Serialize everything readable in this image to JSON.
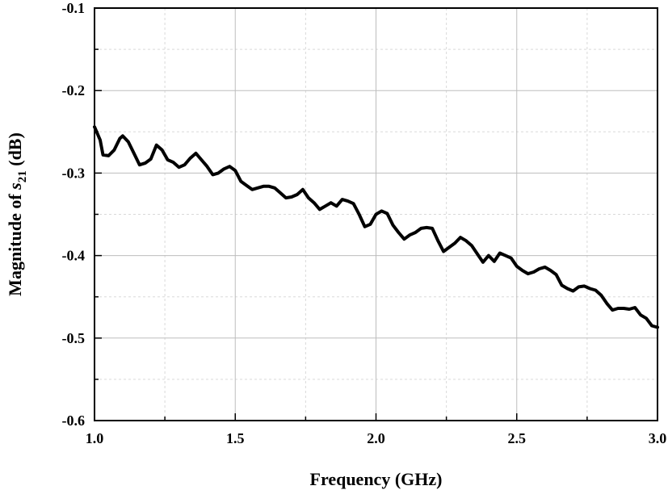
{
  "chart_data": {
    "type": "line",
    "title": "",
    "xlabel": "Frequency (GHz)",
    "ylabel_prefix": "Magnitude of ",
    "ylabel_var": "s",
    "ylabel_sub": "21",
    "ylabel_suffix": " (dB)",
    "xlim": [
      1.0,
      3.0
    ],
    "ylim": [
      -0.6,
      -0.1
    ],
    "xticks": [
      1.0,
      1.5,
      2.0,
      2.5,
      3.0
    ],
    "xtick_labels": [
      "1.0",
      "1.5",
      "2.0",
      "2.5",
      "3.0"
    ],
    "yticks": [
      -0.6,
      -0.5,
      -0.4,
      -0.3,
      -0.2,
      -0.1
    ],
    "ytick_labels": [
      "-0.6",
      "-0.5",
      "-0.4",
      "-0.3",
      "-0.2",
      "-0.1"
    ],
    "grid": true,
    "series": [
      {
        "color": "#000000",
        "x": [
          1.0,
          1.02,
          1.03,
          1.05,
          1.07,
          1.09,
          1.1,
          1.12,
          1.14,
          1.16,
          1.18,
          1.2,
          1.22,
          1.24,
          1.26,
          1.28,
          1.3,
          1.32,
          1.34,
          1.36,
          1.38,
          1.4,
          1.42,
          1.44,
          1.46,
          1.48,
          1.5,
          1.52,
          1.54,
          1.56,
          1.58,
          1.6,
          1.62,
          1.64,
          1.66,
          1.68,
          1.7,
          1.72,
          1.74,
          1.76,
          1.78,
          1.8,
          1.82,
          1.84,
          1.86,
          1.88,
          1.9,
          1.92,
          1.94,
          1.96,
          1.98,
          2.0,
          2.02,
          2.04,
          2.06,
          2.08,
          2.1,
          2.12,
          2.14,
          2.16,
          2.18,
          2.2,
          2.22,
          2.24,
          2.26,
          2.28,
          2.3,
          2.32,
          2.34,
          2.36,
          2.38,
          2.4,
          2.42,
          2.44,
          2.46,
          2.48,
          2.5,
          2.52,
          2.54,
          2.56,
          2.58,
          2.6,
          2.62,
          2.64,
          2.66,
          2.68,
          2.7,
          2.72,
          2.74,
          2.76,
          2.78,
          2.8,
          2.82,
          2.84,
          2.86,
          2.88,
          2.9,
          2.92,
          2.94,
          2.96,
          2.98,
          3.0
        ],
        "y": [
          -0.244,
          -0.26,
          -0.278,
          -0.279,
          -0.272,
          -0.258,
          -0.255,
          -0.262,
          -0.276,
          -0.29,
          -0.288,
          -0.283,
          -0.266,
          -0.272,
          -0.284,
          -0.287,
          -0.293,
          -0.29,
          -0.282,
          -0.276,
          -0.284,
          -0.292,
          -0.302,
          -0.3,
          -0.295,
          -0.292,
          -0.297,
          -0.31,
          -0.315,
          -0.32,
          -0.318,
          -0.316,
          -0.316,
          -0.318,
          -0.324,
          -0.33,
          -0.329,
          -0.326,
          -0.32,
          -0.33,
          -0.336,
          -0.344,
          -0.34,
          -0.336,
          -0.34,
          -0.332,
          -0.334,
          -0.337,
          -0.35,
          -0.365,
          -0.362,
          -0.35,
          -0.346,
          -0.349,
          -0.363,
          -0.372,
          -0.38,
          -0.375,
          -0.372,
          -0.367,
          -0.366,
          -0.367,
          -0.382,
          -0.395,
          -0.39,
          -0.385,
          -0.378,
          -0.382,
          -0.388,
          -0.398,
          -0.408,
          -0.4,
          -0.407,
          -0.397,
          -0.4,
          -0.403,
          -0.413,
          -0.418,
          -0.422,
          -0.42,
          -0.416,
          -0.414,
          -0.418,
          -0.423,
          -0.436,
          -0.44,
          -0.443,
          -0.438,
          -0.437,
          -0.44,
          -0.442,
          -0.448,
          -0.458,
          -0.466,
          -0.464,
          -0.464,
          -0.465,
          -0.463,
          -0.472,
          -0.476,
          -0.485,
          -0.487
        ]
      }
    ]
  }
}
